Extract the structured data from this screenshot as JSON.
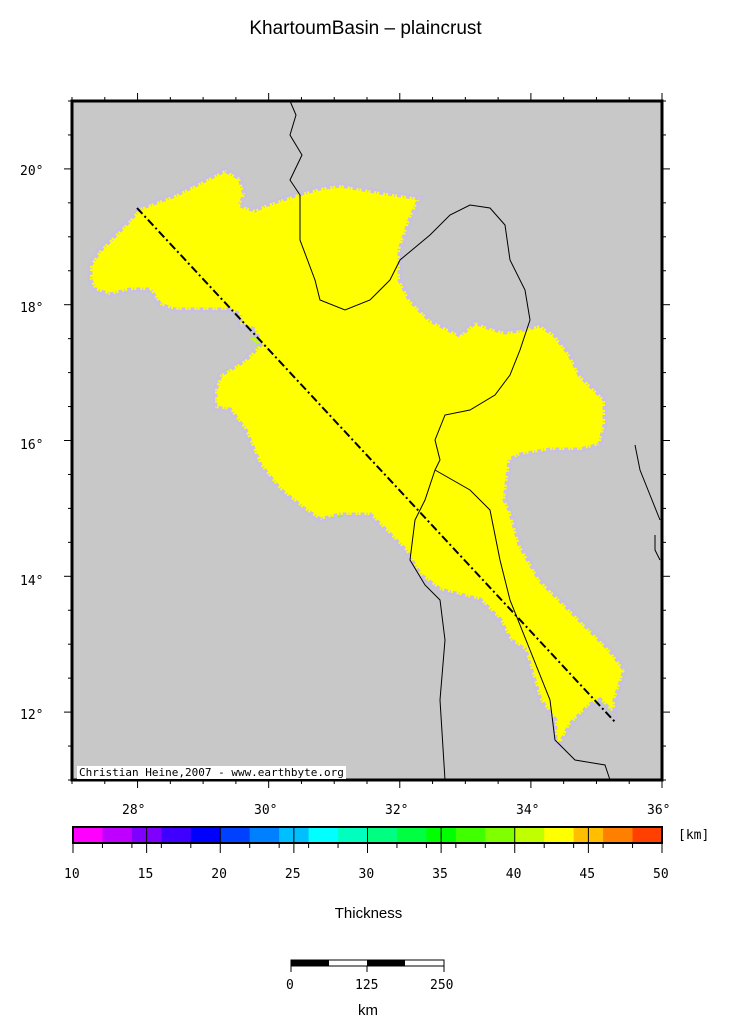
{
  "title": "KhartoumBasin – plaincrust",
  "map": {
    "lat_labels": [
      "20°",
      "18°",
      "16°",
      "14°",
      "12°"
    ],
    "lon_labels": [
      "28°",
      "30°",
      "32°",
      "34°",
      "36°"
    ],
    "lon_range": [
      27,
      36
    ],
    "lat_range": [
      11,
      21
    ],
    "credit": "Christian Heine,2007 - www.earthbyte.org",
    "colors": {
      "land": "#c8c8c8",
      "basin_fill": "#ffff00",
      "outline": "#ff0000",
      "profile_line": "#000000"
    }
  },
  "colorbar": {
    "label": "Thickness",
    "unit": "[km]",
    "tick_labels": [
      "10",
      "15",
      "20",
      "25",
      "30",
      "35",
      "40",
      "45",
      "50"
    ],
    "range": [
      10,
      50
    ],
    "step": 2,
    "colors": [
      "#ff00ff",
      "#bf00ff",
      "#8000ff",
      "#4000ff",
      "#0000ff",
      "#0040ff",
      "#0080ff",
      "#00bfff",
      "#00ffff",
      "#00ffbf",
      "#00ff80",
      "#00ff40",
      "#00ff00",
      "#40ff00",
      "#80ff00",
      "#bfff00",
      "#ffff00",
      "#ffbf00",
      "#ff8000",
      "#ff4000"
    ]
  },
  "scalebar": {
    "labels": [
      "0",
      "125",
      "250"
    ],
    "unit": "km"
  }
}
